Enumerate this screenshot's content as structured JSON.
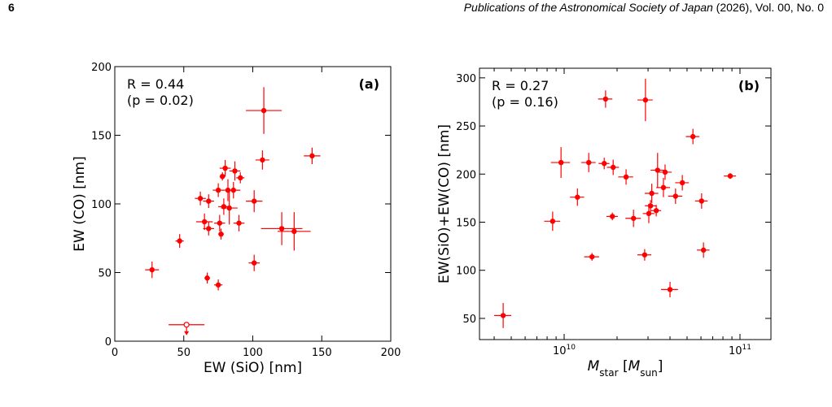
{
  "header": {
    "page": "6",
    "journal": "Publications of the Astronomical Society of Japan",
    "rest": " (2026), Vol. 00, No. 0"
  },
  "chart_data": [
    {
      "type": "scatter",
      "color": "#ff0000",
      "xscale": "linear",
      "xlabel": [
        {
          "text": "EW (SiO) [nm]",
          "style": "normal"
        }
      ],
      "ylabel": "EW (CO) [nm]",
      "annotations": [
        "R = 0.44",
        "(p = 0.02)"
      ],
      "panel": "(a)",
      "xlim": [
        0,
        200
      ],
      "xticks": [
        0,
        50,
        100,
        150,
        200
      ],
      "ylim": [
        0,
        200
      ],
      "yticks": [
        0,
        50,
        100,
        150,
        200
      ],
      "x": [
        27,
        47,
        62,
        68,
        65,
        68,
        67,
        75,
        78,
        80,
        82,
        86,
        87,
        91,
        79,
        83,
        76,
        77,
        90,
        75,
        101,
        101,
        107,
        108,
        121,
        130,
        143
      ],
      "y": [
        52,
        73,
        104,
        102,
        87,
        82,
        46,
        110,
        120,
        126,
        110,
        110,
        124,
        119,
        98,
        97,
        86,
        78,
        86,
        41,
        102,
        57,
        132,
        168,
        82,
        80,
        135
      ],
      "xerr": [
        5,
        3,
        4,
        4,
        6,
        4,
        2,
        4,
        2,
        4,
        4,
        5,
        4,
        3,
        4,
        6,
        4,
        2,
        4,
        3,
        6,
        4,
        5,
        13,
        15,
        12,
        6
      ],
      "yerr": [
        6,
        5,
        5,
        5,
        6,
        5,
        4,
        5,
        3,
        6,
        8,
        6,
        7,
        4,
        6,
        12,
        6,
        4,
        6,
        4,
        8,
        6,
        7,
        17,
        12,
        14,
        6
      ],
      "upper_limits": {
        "x": [
          52
        ],
        "y": [
          12
        ],
        "xerr": [
          13
        ]
      }
    },
    {
      "type": "scatter",
      "color": "#ff0000",
      "xscale": "log",
      "minor_ticks": true,
      "xlabel": [
        {
          "text": "M",
          "style": "italic"
        },
        {
          "text": "star",
          "style": "sub"
        },
        {
          "text": " [",
          "style": "normal"
        },
        {
          "text": "M",
          "style": "italic"
        },
        {
          "text": "sun",
          "style": "sub"
        },
        {
          "text": "]",
          "style": "normal"
        }
      ],
      "ylabel": "EW(SiO)+EW(CO) [nm]",
      "annotations": [
        "R = 0.27",
        "(p = 0.16)"
      ],
      "panel": "(b)",
      "xlim": [
        3300000000.0,
        150000000000.0
      ],
      "xticks": [
        {
          "value": 10000000000.0,
          "label": "10",
          "exponent": "10"
        },
        {
          "value": 100000000000.0,
          "label": "10",
          "exponent": "11"
        }
      ],
      "ylim": [
        28,
        310
      ],
      "yticks": [
        50,
        100,
        150,
        200,
        250,
        300
      ],
      "x": [
        4500000000.0,
        8600000000.0,
        9600000000.0,
        11900000000.0,
        13800000000.0,
        14400000000.0,
        16900000000.0,
        17200000000.0,
        19000000000.0,
        18800000000.0,
        22500000000.0,
        24800000000.0,
        28700000000.0,
        29000000000.0,
        30300000000.0,
        31000000000.0,
        31500000000.0,
        33400000000.0,
        34000000000.0,
        36700000000.0,
        37500000000.0,
        40000000000.0,
        43000000000.0,
        47000000000.0,
        54000000000.0,
        60500000000.0,
        62000000000.0,
        88000000000.0
      ],
      "y": [
        53,
        151,
        212,
        176,
        212,
        114,
        211,
        278,
        207,
        156,
        197,
        154,
        116,
        277,
        159,
        167,
        180,
        162,
        204,
        186,
        202,
        80,
        177,
        191,
        239,
        172,
        121,
        198
      ],
      "xerr": [
        500000000.0,
        900000000.0,
        1200000000.0,
        1100000000.0,
        1300000000.0,
        1400000000.0,
        1200000000.0,
        1600000000.0,
        1500000000.0,
        1400000000.0,
        2200000000.0,
        2500000000.0,
        2600000000.0,
        2900000000.0,
        2300000000.0,
        2200000000.0,
        2800000000.0,
        2200000000.0,
        3000000000.0,
        3300000000.0,
        3400000000.0,
        4400000000.0,
        4000000000.0,
        4200000000.0,
        4800000000.0,
        5000000000.0,
        5100000000.0,
        7000000000.0
      ],
      "yerr": [
        13,
        10,
        16,
        9,
        10,
        4,
        6,
        9,
        8,
        4,
        8,
        9,
        6,
        22,
        10,
        6,
        10,
        6,
        18,
        10,
        8,
        8,
        8,
        8,
        8,
        8,
        8,
        3
      ]
    }
  ]
}
